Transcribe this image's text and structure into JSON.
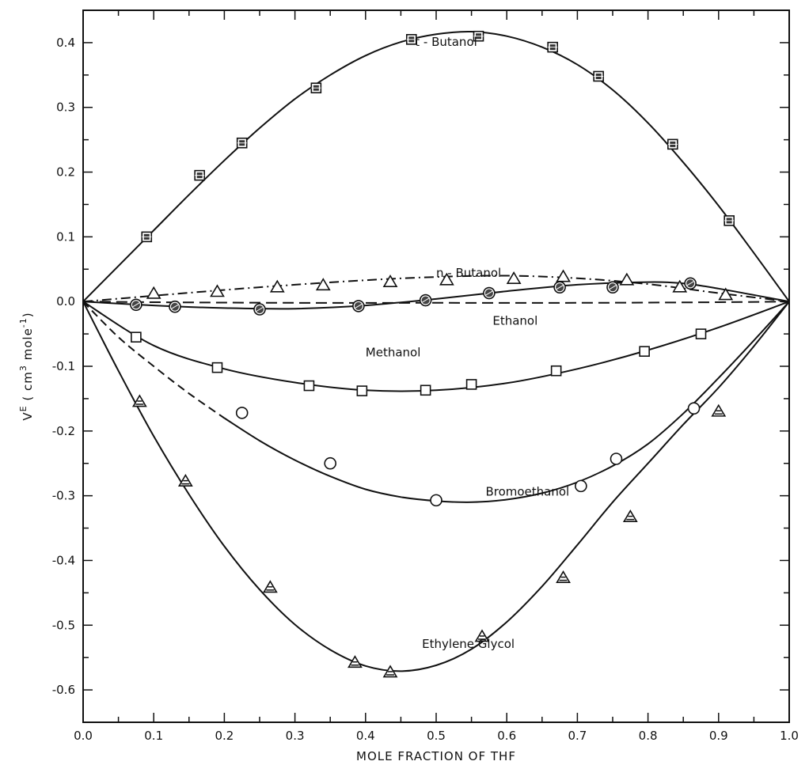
{
  "chart_data": {
    "type": "scatter",
    "title": "",
    "xlabel": "MOLE FRACTION OF THF",
    "ylabel": "VE ( cm3 mole-1)",
    "ylabel_parts": {
      "main": "V",
      "sup1": "E",
      "mid": " ( cm",
      "sup2": "3",
      "mid2": " mole",
      "sup3": "-1",
      "end": ")"
    },
    "xlim": [
      0.0,
      1.0
    ],
    "ylim": [
      -0.65,
      0.45
    ],
    "x_ticks": [
      0.0,
      0.1,
      0.2,
      0.3,
      0.4,
      0.5,
      0.6,
      0.7,
      0.8,
      0.9,
      1.0
    ],
    "x_tick_labels": [
      "0.0",
      "0.1",
      "0.2",
      "0.3",
      "0.4",
      "0.5",
      "0.6",
      "0.7",
      "0.8",
      "0.9",
      "1.0"
    ],
    "y_ticks": [
      0.4,
      0.3,
      0.2,
      0.1,
      0.0,
      -0.1,
      -0.2,
      -0.3,
      -0.4,
      -0.5,
      -0.6
    ],
    "y_tick_labels": [
      "0.4",
      "0.3",
      "0.2",
      "0.1",
      "0.0",
      "-0.1",
      "-0.2",
      "-0.3",
      "-0.4",
      "-0.5",
      "-0.6"
    ],
    "grid": false,
    "series": [
      {
        "name": "t - Butanol",
        "marker": "square-dot",
        "line": "solid",
        "label_at": [
          0.47,
          0.395
        ],
        "points": [
          [
            0.09,
            0.1
          ],
          [
            0.165,
            0.195
          ],
          [
            0.225,
            0.245
          ],
          [
            0.33,
            0.33
          ],
          [
            0.465,
            0.405
          ],
          [
            0.56,
            0.41
          ],
          [
            0.665,
            0.393
          ],
          [
            0.73,
            0.348
          ],
          [
            0.835,
            0.243
          ],
          [
            0.915,
            0.125
          ]
        ],
        "curve": [
          [
            0.0,
            0.0
          ],
          [
            0.05,
            0.055
          ],
          [
            0.1,
            0.11
          ],
          [
            0.15,
            0.165
          ],
          [
            0.2,
            0.218
          ],
          [
            0.25,
            0.268
          ],
          [
            0.3,
            0.313
          ],
          [
            0.35,
            0.35
          ],
          [
            0.4,
            0.38
          ],
          [
            0.45,
            0.401
          ],
          [
            0.5,
            0.413
          ],
          [
            0.55,
            0.417
          ],
          [
            0.6,
            0.41
          ],
          [
            0.65,
            0.393
          ],
          [
            0.7,
            0.366
          ],
          [
            0.75,
            0.327
          ],
          [
            0.8,
            0.276
          ],
          [
            0.85,
            0.215
          ],
          [
            0.9,
            0.148
          ],
          [
            0.95,
            0.075
          ],
          [
            1.0,
            0.0
          ]
        ]
      },
      {
        "name": "n - Butanol",
        "marker": "triangle",
        "line": "dash-dot",
        "label_at": [
          0.5,
          0.038
        ],
        "points": [
          [
            0.1,
            0.012
          ],
          [
            0.19,
            0.015
          ],
          [
            0.275,
            0.022
          ],
          [
            0.34,
            0.025
          ],
          [
            0.435,
            0.03
          ],
          [
            0.515,
            0.033
          ],
          [
            0.61,
            0.035
          ],
          [
            0.68,
            0.038
          ],
          [
            0.77,
            0.033
          ],
          [
            0.845,
            0.022
          ],
          [
            0.91,
            0.01
          ]
        ],
        "curve": [
          [
            0.0,
            0.0
          ],
          [
            0.1,
            0.009
          ],
          [
            0.2,
            0.018
          ],
          [
            0.3,
            0.026
          ],
          [
            0.4,
            0.033
          ],
          [
            0.5,
            0.038
          ],
          [
            0.6,
            0.04
          ],
          [
            0.7,
            0.036
          ],
          [
            0.8,
            0.027
          ],
          [
            0.9,
            0.013
          ],
          [
            1.0,
            0.0
          ]
        ]
      },
      {
        "name": "Ethanol",
        "marker": "circle-hatched",
        "line": "solid",
        "label_at": [
          0.58,
          -0.036
        ],
        "points": [
          [
            0.075,
            -0.005
          ],
          [
            0.13,
            -0.008
          ],
          [
            0.25,
            -0.012
          ],
          [
            0.39,
            -0.007
          ],
          [
            0.485,
            0.002
          ],
          [
            0.575,
            0.013
          ],
          [
            0.675,
            0.022
          ],
          [
            0.75,
            0.022
          ],
          [
            0.86,
            0.028
          ]
        ],
        "curve": [
          [
            0.0,
            0.0
          ],
          [
            0.1,
            -0.006
          ],
          [
            0.2,
            -0.01
          ],
          [
            0.3,
            -0.011
          ],
          [
            0.4,
            -0.006
          ],
          [
            0.5,
            0.004
          ],
          [
            0.6,
            0.016
          ],
          [
            0.7,
            0.026
          ],
          [
            0.8,
            0.03
          ],
          [
            0.85,
            0.028
          ],
          [
            0.9,
            0.02
          ],
          [
            1.0,
            0.0
          ]
        ]
      },
      {
        "name": "Ethanol (dashed)",
        "marker": "none",
        "line": "dashed",
        "points": [],
        "curve": [
          [
            0.0,
            0.0
          ],
          [
            0.1,
            -0.001
          ],
          [
            0.3,
            -0.002
          ],
          [
            0.5,
            -0.002
          ],
          [
            0.7,
            -0.002
          ],
          [
            0.9,
            -0.001
          ],
          [
            1.0,
            0.0
          ]
        ]
      },
      {
        "name": "Methanol",
        "marker": "square",
        "line": "solid",
        "label_at": [
          0.4,
          -0.085
        ],
        "points": [
          [
            0.075,
            -0.055
          ],
          [
            0.19,
            -0.102
          ],
          [
            0.32,
            -0.13
          ],
          [
            0.395,
            -0.138
          ],
          [
            0.485,
            -0.137
          ],
          [
            0.55,
            -0.128
          ],
          [
            0.67,
            -0.107
          ],
          [
            0.795,
            -0.077
          ],
          [
            0.875,
            -0.05
          ]
        ],
        "curve": [
          [
            0.0,
            0.0
          ],
          [
            0.1,
            -0.068
          ],
          [
            0.2,
            -0.104
          ],
          [
            0.3,
            -0.125
          ],
          [
            0.4,
            -0.137
          ],
          [
            0.5,
            -0.137
          ],
          [
            0.6,
            -0.126
          ],
          [
            0.7,
            -0.104
          ],
          [
            0.8,
            -0.075
          ],
          [
            0.9,
            -0.04
          ],
          [
            1.0,
            0.0
          ]
        ]
      },
      {
        "name": "Bromoethanol",
        "marker": "circle",
        "line": "dashed-solid",
        "label_at": [
          0.57,
          -0.3
        ],
        "points": [
          [
            0.225,
            -0.172
          ],
          [
            0.35,
            -0.25
          ],
          [
            0.5,
            -0.307
          ],
          [
            0.705,
            -0.285
          ],
          [
            0.755,
            -0.243
          ],
          [
            0.865,
            -0.165
          ]
        ],
        "curve": [
          [
            0.0,
            0.0
          ],
          [
            0.05,
            -0.055
          ],
          [
            0.1,
            -0.1
          ],
          [
            0.15,
            -0.142
          ],
          [
            0.2,
            -0.18
          ],
          [
            0.25,
            -0.215
          ],
          [
            0.3,
            -0.245
          ],
          [
            0.35,
            -0.27
          ],
          [
            0.4,
            -0.29
          ],
          [
            0.45,
            -0.302
          ],
          [
            0.5,
            -0.308
          ],
          [
            0.55,
            -0.31
          ],
          [
            0.6,
            -0.306
          ],
          [
            0.65,
            -0.296
          ],
          [
            0.7,
            -0.279
          ],
          [
            0.75,
            -0.254
          ],
          [
            0.8,
            -0.22
          ],
          [
            0.85,
            -0.173
          ],
          [
            0.9,
            -0.118
          ],
          [
            0.95,
            -0.06
          ],
          [
            1.0,
            0.0
          ]
        ],
        "dashed_until": 0.2
      },
      {
        "name": "Ethylene Glycol",
        "marker": "triangle-hatched",
        "line": "solid",
        "label_at": [
          0.48,
          -0.535
        ],
        "points": [
          [
            0.08,
            -0.155
          ],
          [
            0.145,
            -0.278
          ],
          [
            0.265,
            -0.442
          ],
          [
            0.385,
            -0.558
          ],
          [
            0.435,
            -0.573
          ],
          [
            0.565,
            -0.518
          ],
          [
            0.68,
            -0.427
          ],
          [
            0.775,
            -0.333
          ],
          [
            0.9,
            -0.17
          ]
        ],
        "curve": [
          [
            0.0,
            0.0
          ],
          [
            0.05,
            -0.107
          ],
          [
            0.1,
            -0.208
          ],
          [
            0.15,
            -0.298
          ],
          [
            0.2,
            -0.378
          ],
          [
            0.25,
            -0.445
          ],
          [
            0.3,
            -0.499
          ],
          [
            0.35,
            -0.538
          ],
          [
            0.4,
            -0.563
          ],
          [
            0.45,
            -0.571
          ],
          [
            0.5,
            -0.562
          ],
          [
            0.55,
            -0.537
          ],
          [
            0.6,
            -0.495
          ],
          [
            0.65,
            -0.44
          ],
          [
            0.7,
            -0.376
          ],
          [
            0.75,
            -0.31
          ],
          [
            0.8,
            -0.25
          ],
          [
            0.85,
            -0.19
          ],
          [
            0.9,
            -0.133
          ],
          [
            0.95,
            -0.069
          ],
          [
            1.0,
            0.0
          ]
        ]
      }
    ]
  }
}
